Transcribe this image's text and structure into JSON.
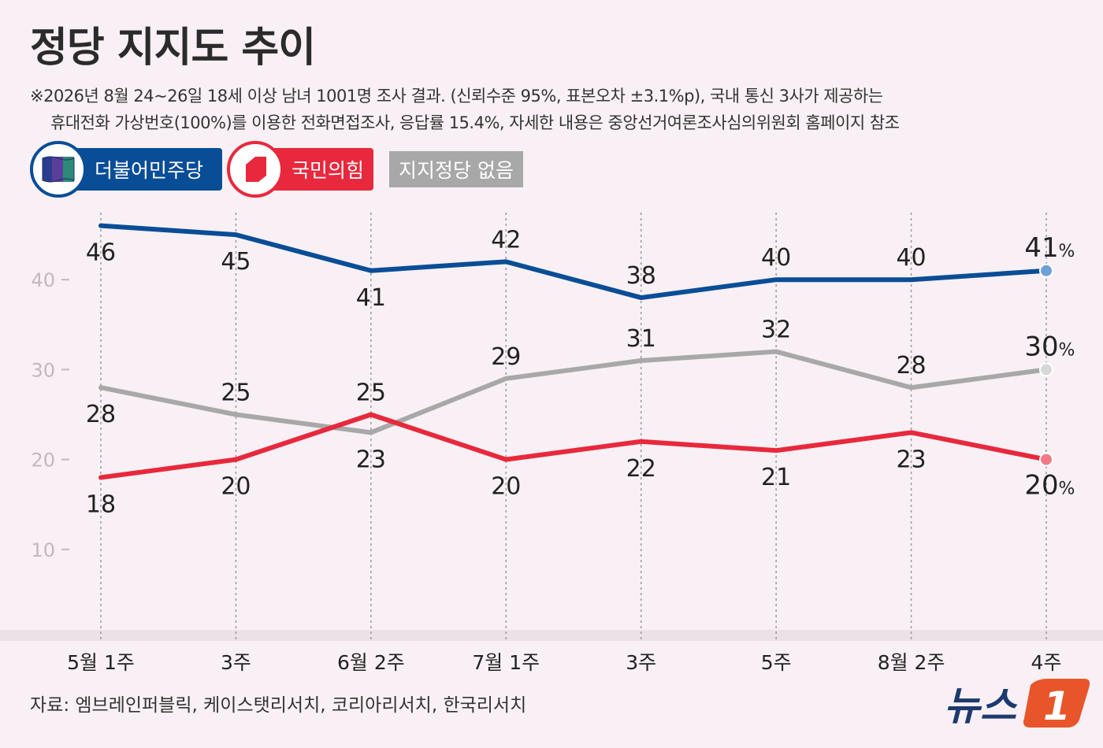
{
  "title": "정당 지지도 추이",
  "notes": [
    "※2026년 8월 24~26일 18세 이상 남녀 1001명 조사 결과. (신뢰수준 95%, 표본오차 ±3.1%p), 국내 통신 3사가 제공하는",
    "휴대전화 가상번호(100%)를 이용한 전화면접조사, 응답률 15.4%, 자세한 내용은 중앙선거여론조사심의위원회 홈페이지 참조"
  ],
  "legend": {
    "dp": "더불어민주당",
    "ppp": "국민의힘",
    "none": "지지정당 없음"
  },
  "source": "자료: 엠브레인퍼블릭, 케이스탯리서치, 코리아리서치, 한국리서치",
  "logo_text": "뉴스1",
  "colors": {
    "dp": "#0a4d97",
    "ppp": "#e8283c",
    "none": "#a8a8a8",
    "background": "#f8f0f4"
  },
  "chart_data": {
    "type": "line",
    "categories": [
      "5월 1주",
      "3주",
      "6월 2주",
      "7월 1주",
      "3주",
      "5주",
      "8월 2주",
      "4주"
    ],
    "y_ticks": [
      10,
      20,
      30,
      40
    ],
    "ylim": [
      0,
      50
    ],
    "grid": "vertical dotted",
    "legend_position": "top-left",
    "last_label_unit": "%",
    "series": [
      {
        "name": "더불어민주당",
        "key": "dp",
        "values": [
          46,
          45,
          41,
          42,
          38,
          40,
          40,
          41
        ]
      },
      {
        "name": "국민의힘",
        "key": "ppp",
        "values": [
          18,
          20,
          25,
          20,
          22,
          21,
          23,
          20
        ]
      },
      {
        "name": "지지정당 없음",
        "key": "none",
        "values": [
          28,
          25,
          23,
          29,
          31,
          32,
          28,
          30
        ]
      }
    ]
  }
}
